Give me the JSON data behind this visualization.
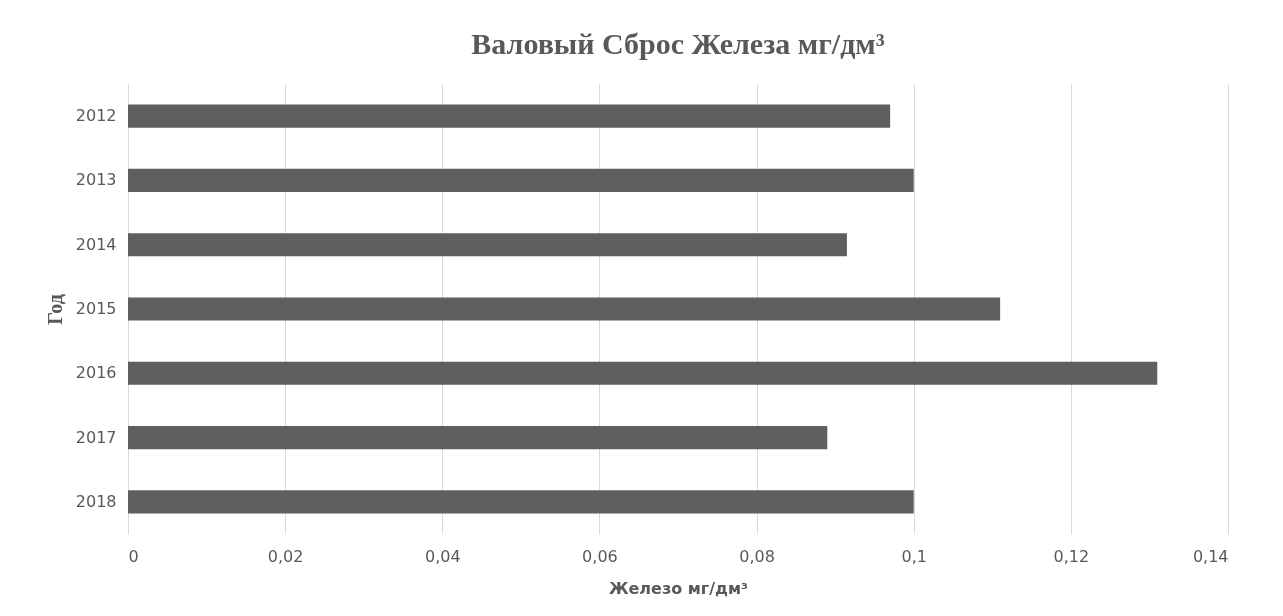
{
  "chart_data": {
    "type": "bar",
    "orientation": "horizontal",
    "title": "Валовый Сброс Железа мг/дм³",
    "xlabel": "Железо мг/дм³",
    "ylabel": "Год",
    "categories": [
      "2012",
      "2013",
      "2014",
      "2015",
      "2016",
      "2017",
      "2018"
    ],
    "values": [
      0.097,
      0.1,
      0.0915,
      0.111,
      0.131,
      0.089,
      0.1
    ],
    "color": "#5f5f5f",
    "xlim": [
      0,
      0.14
    ],
    "xticks": [
      0,
      {
        "value": 0.02,
        "label": "0,02"
      },
      {
        "value": 0.04,
        "label": "0,04"
      },
      {
        "value": 0.06,
        "label": "0,06"
      },
      {
        "value": 0.08,
        "label": "0,08"
      },
      {
        "value": 0.1,
        "label": "0,1"
      },
      {
        "value": 0.12,
        "label": "0,12"
      },
      {
        "value": 0.14,
        "label": "0,14"
      }
    ],
    "grid": "x"
  }
}
